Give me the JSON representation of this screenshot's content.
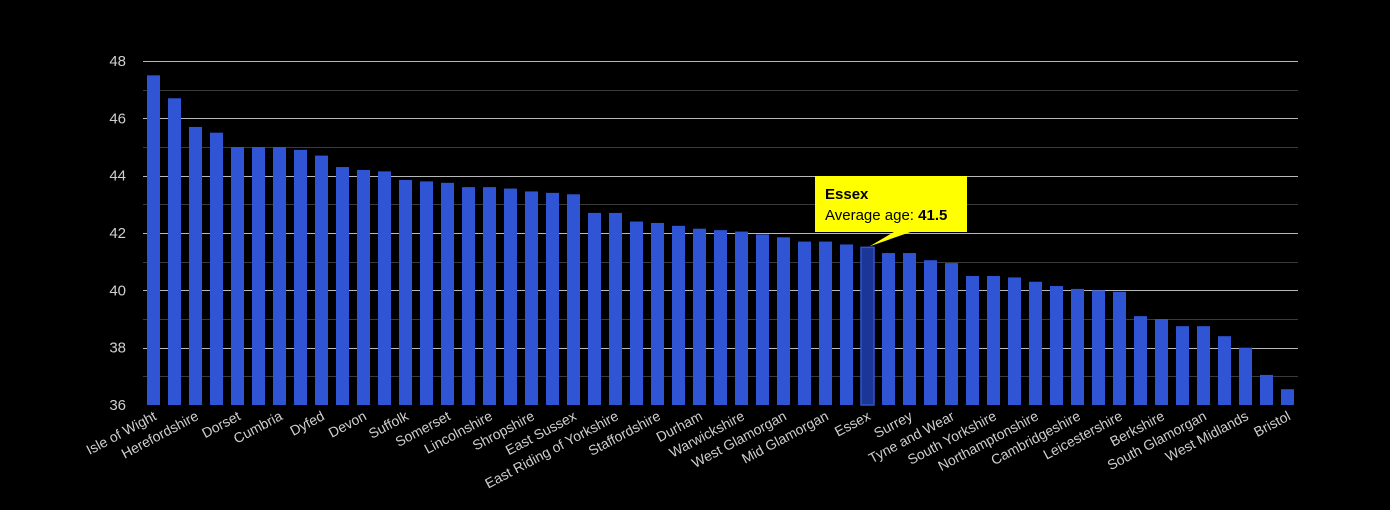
{
  "chart_data": {
    "type": "bar",
    "title": "",
    "xlabel": "",
    "ylabel": "",
    "ylim": [
      36,
      48
    ],
    "yticks": [
      36,
      38,
      40,
      42,
      44,
      46,
      48
    ],
    "grid": true,
    "bar_color": "#2f55d4",
    "highlight_color": "#1b3697",
    "categories": [
      "Isle of Wight",
      "",
      "Herefordshire",
      "",
      "Dorset",
      "",
      "Cumbria",
      "",
      "Dyfed",
      "",
      "Devon",
      "",
      "Suffolk",
      "",
      "Somerset",
      "",
      "Lincolnshire",
      "",
      "Shropshire",
      "",
      "East Sussex",
      "",
      "East Riding of Yorkshire",
      "",
      "Staffordshire",
      "",
      "Durham",
      "",
      "Warwickshire",
      "",
      "West Glamorgan",
      "",
      "Mid Glamorgan",
      "",
      "Essex",
      "",
      "Surrey",
      "",
      "Tyne and Wear",
      "",
      "South Yorkshire",
      "",
      "Northamptonshire",
      "",
      "Cambridgeshire",
      "",
      "Leicestershire",
      "",
      "Berkshire",
      "",
      "South Glamorgan",
      "",
      "West Midlands",
      "",
      "Bristol"
    ],
    "values": [
      47.5,
      46.7,
      45.7,
      45.5,
      45.0,
      45.0,
      45.0,
      44.9,
      44.7,
      44.3,
      44.2,
      44.15,
      43.85,
      43.8,
      43.75,
      43.6,
      43.6,
      43.55,
      43.45,
      43.4,
      43.35,
      42.7,
      42.7,
      42.4,
      42.35,
      42.25,
      42.15,
      42.1,
      42.05,
      41.95,
      41.85,
      41.7,
      41.7,
      41.6,
      41.5,
      41.3,
      41.3,
      41.05,
      40.95,
      40.5,
      40.5,
      40.45,
      40.3,
      40.15,
      40.05,
      40.0,
      39.95,
      39.1,
      39.0,
      38.75,
      38.75,
      38.4,
      38.0,
      37.05,
      36.55
    ],
    "highlight_index": 34,
    "tooltip": {
      "name": "Essex",
      "label": "Average age: ",
      "value": "41.5"
    }
  }
}
